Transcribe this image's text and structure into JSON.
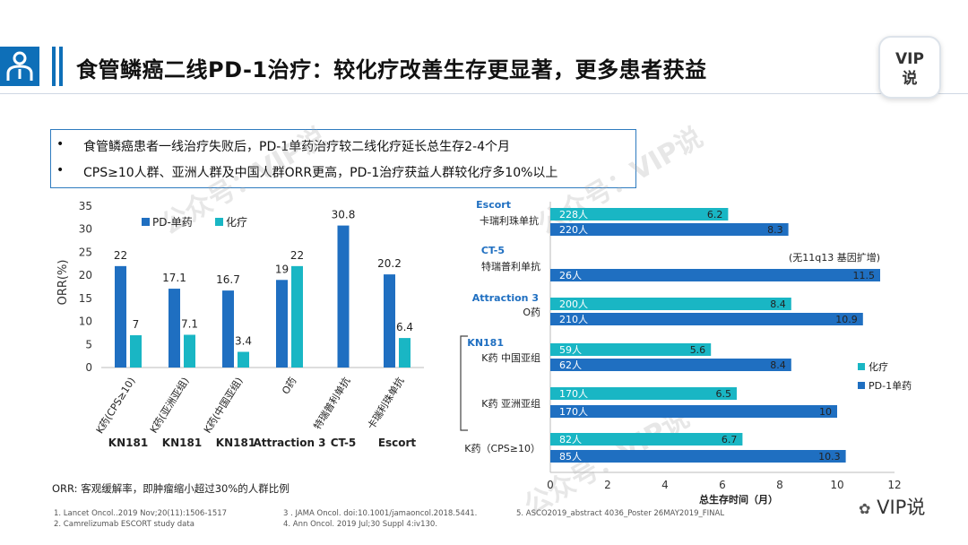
{
  "header": {
    "title": "食管鳞癌二线PD-1治疗：较化疗改善生存更显著，更多患者获益",
    "badge_line1": "VIP",
    "badge_line2": "说"
  },
  "bullets": [
    "食管鳞癌患者一线治疗失败后，PD-1单药治疗较二线化疗延长总生存2-4个月",
    "CPS≥10人群、亚洲人群及中国人群ORR更高，PD-1治疗获益人群较化疗多10%以上"
  ],
  "bullet_marker": "•",
  "watermarks": [
    "公众号：VIP说",
    "公众号：VIP说",
    "公众号：VIP说"
  ],
  "colors": {
    "pd1": "#1f6fc1",
    "chemo": "#19b6c4",
    "brand": "#0e6fb8"
  },
  "chart_data": [
    {
      "type": "bar",
      "title": "",
      "ylabel": "ORR(%)",
      "xlabel": "",
      "ylim": [
        0,
        35
      ],
      "yticks": [
        0,
        5,
        10,
        15,
        20,
        25,
        30,
        35
      ],
      "categories": [
        "K药(CPS≥10)",
        "K药(亚洲亚组)",
        "K药(中国亚组)",
        "O药",
        "特瑞普利单抗",
        "卡瑞利珠单抗"
      ],
      "groups": [
        "KN181",
        "KN181",
        "KN181",
        "Attraction 3",
        "CT-5",
        "Escort"
      ],
      "series": [
        {
          "name": "PD-单药",
          "values": [
            22,
            17.1,
            16.7,
            19,
            30.8,
            20.2
          ],
          "labels": [
            "22",
            "17.1",
            "16.7",
            "19",
            "30.8",
            "20.2"
          ]
        },
        {
          "name": "化疗",
          "values": [
            7,
            7.1,
            3.4,
            22,
            null,
            6.4
          ],
          "labels": [
            "7",
            "7.1",
            "3.4",
            "22",
            "",
            "6.4"
          ]
        }
      ],
      "legend": "top"
    },
    {
      "type": "bar",
      "orientation": "horizontal",
      "title": "",
      "xlabel": "总生存时间（月）",
      "xlim": [
        0,
        12
      ],
      "xticks": [
        0,
        2,
        4,
        6,
        8,
        10,
        12
      ],
      "groups": [
        {
          "name": "Escort",
          "rows": [
            "卡瑞利珠单抗"
          ]
        },
        {
          "name": "CT-5",
          "rows": [
            "特瑞普利单抗"
          ]
        },
        {
          "name": "Attraction 3",
          "rows": [
            "O药"
          ]
        },
        {
          "name": "KN181",
          "rows": [
            "K药 中国亚组",
            "K药 亚洲亚组",
            "K药（CPS≥10）"
          ]
        }
      ],
      "bars": [
        {
          "series": "化疗",
          "n": "228人",
          "value": 6.2,
          "label": "6.2"
        },
        {
          "series": "PD-1单药",
          "n": "220人",
          "value": 8.3,
          "label": "8.3"
        },
        {
          "series": "PD-1单药",
          "n": "26人",
          "value": 11.5,
          "label": "11.5"
        },
        {
          "series": "化疗",
          "n": "200人",
          "value": 8.4,
          "label": "8.4"
        },
        {
          "series": "PD-1单药",
          "n": "210人",
          "value": 10.9,
          "label": "10.9"
        },
        {
          "series": "化疗",
          "n": "59人",
          "value": 5.6,
          "label": "5.6"
        },
        {
          "series": "PD-1单药",
          "n": "62人",
          "value": 8.4,
          "label": "8.4"
        },
        {
          "series": "化疗",
          "n": "170人",
          "value": 6.5,
          "label": "6.5"
        },
        {
          "series": "PD-1单药",
          "n": "170人",
          "value": 10,
          "label": "10"
        },
        {
          "series": "化疗",
          "n": "82人",
          "value": 6.7,
          "label": "6.7"
        },
        {
          "series": "PD-1单药",
          "n": "85人",
          "value": 10.3,
          "label": "10.3"
        }
      ],
      "annotation": "(无11q13 基因扩增)",
      "legend": [
        "化疗",
        "PD-1单药"
      ]
    }
  ],
  "footnote": "ORR: 客观缓解率，即肿瘤缩小超过30%的人群比例",
  "references": [
    "1.    Lancet Oncol..2019 Nov;20(11):1506-1517",
    "2.    Camrelizumab ESCORT study data",
    "3 . JAMA Oncol. doi:10.1001/jamaoncol.2018.5441.",
    "4. Ann Oncol. 2019 Jul;30 Suppl 4:iv130.",
    "5. ASCO2019_abstract 4036_Poster 26MAY2019_FINAL"
  ],
  "brand_text": "VIP说"
}
